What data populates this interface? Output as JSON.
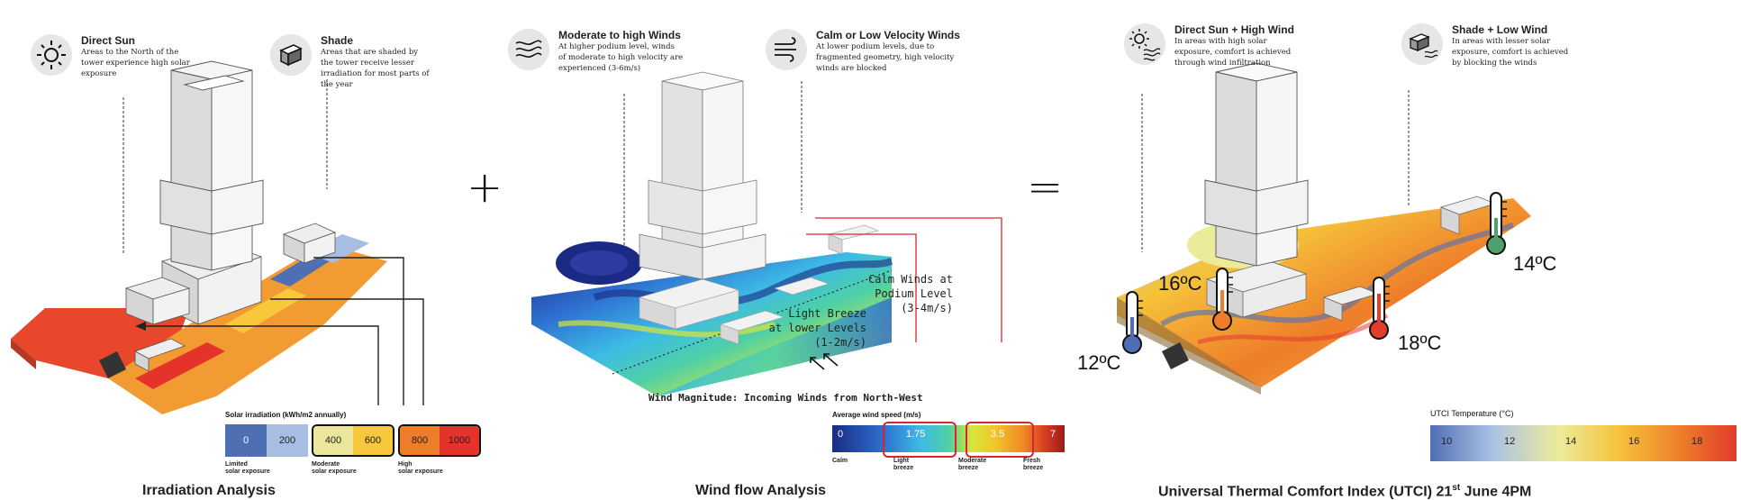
{
  "panels": {
    "irradiation": {
      "caption": "Irradiation Analysis",
      "annotations": [
        {
          "title": "Direct Sun",
          "desc": [
            "Areas to the North of the",
            "tower experience high solar",
            "exposure"
          ],
          "icon": "sun-icon"
        },
        {
          "title": "Shade",
          "desc": [
            "Areas that are shaded by",
            "the tower receive lesser",
            "irradiation for most parts of",
            "the year"
          ],
          "icon": "shade-box-icon"
        }
      ],
      "legend": {
        "title": "Solar irradiation (kWh/m2 annually)",
        "values": [
          "0",
          "200",
          "400",
          "600",
          "800",
          "1000"
        ],
        "colors": [
          "#4e6fb1",
          "#a8bde2",
          "#eae79c",
          "#f7c73c",
          "#ee7d2a",
          "#e5322b"
        ],
        "groups": [
          {
            "label_line1": "Limited",
            "label_line2": "solar exposure"
          },
          {
            "label_line1": "Moderate",
            "label_line2": "solar exposure"
          },
          {
            "label_line1": "High",
            "label_line2": "solar exposure"
          }
        ]
      }
    },
    "wind": {
      "caption": "Wind flow Analysis",
      "annotations": [
        {
          "title": "Moderate to high Winds",
          "desc": [
            "At higher podium level, winds",
            "of moderate to high velocity are",
            "experienced (3-6m/s)"
          ],
          "icon": "wind-lines-icon"
        },
        {
          "title": "Calm or Low Velocity Winds",
          "desc": [
            "At lower podium levels, due to",
            "fragmented geometry, high velocity",
            "winds are blocked"
          ],
          "icon": "calm-wind-icon"
        }
      ],
      "flow_labels": {
        "calm": [
          "Calm Winds at",
          "Podium Level",
          "(3-4m/s)"
        ],
        "breeze": [
          "Light Breeze",
          "at lower Levels",
          "(1-2m/s)"
        ],
        "magnitude": "Wind Magnitude: Incoming Winds from North-West"
      },
      "legend": {
        "title": "Average wind speed (m/s)",
        "values": [
          "0",
          "1.75",
          "3.5",
          "7"
        ],
        "gradient": [
          "#1b2a84",
          "#2e6fd0",
          "#3dbbe6",
          "#4fd0a6",
          "#d5e63a",
          "#f2c52b",
          "#f08a24",
          "#d63a22",
          "#9c1a1a"
        ],
        "groups": [
          "Calm",
          "Light breeze",
          "Moderate breeze",
          "Fresh breeze"
        ]
      }
    },
    "utci": {
      "caption": "Universal Thermal Comfort Index (UTCI) 21",
      "caption_sup": "st",
      "caption_tail": " June 4PM",
      "annotations": [
        {
          "title": "Direct Sun + High Wind",
          "desc": [
            "In areas with high solar",
            "exposure, comfort is achieved",
            "through wind infiltration"
          ],
          "icon": "sun-wind-icon"
        },
        {
          "title": "Shade + Low Wind",
          "desc": [
            "In areas with lesser solar",
            "exposure, comfort is achieved",
            "by blocking the winds"
          ],
          "icon": "shade-wind-icon"
        }
      ],
      "temperatures": [
        "12ºC",
        "16ºC",
        "18ºC",
        "14ºC"
      ],
      "legend": {
        "title": "UTCI Temperature (°C)",
        "values": [
          "10",
          "12",
          "14",
          "16",
          "18"
        ],
        "gradient": [
          "#4f6fb5",
          "#a9c1e4",
          "#eceb9a",
          "#f6c23a",
          "#ee7d2a",
          "#e23c2b"
        ]
      }
    }
  },
  "operators": {
    "plus": "+",
    "equals": "="
  }
}
